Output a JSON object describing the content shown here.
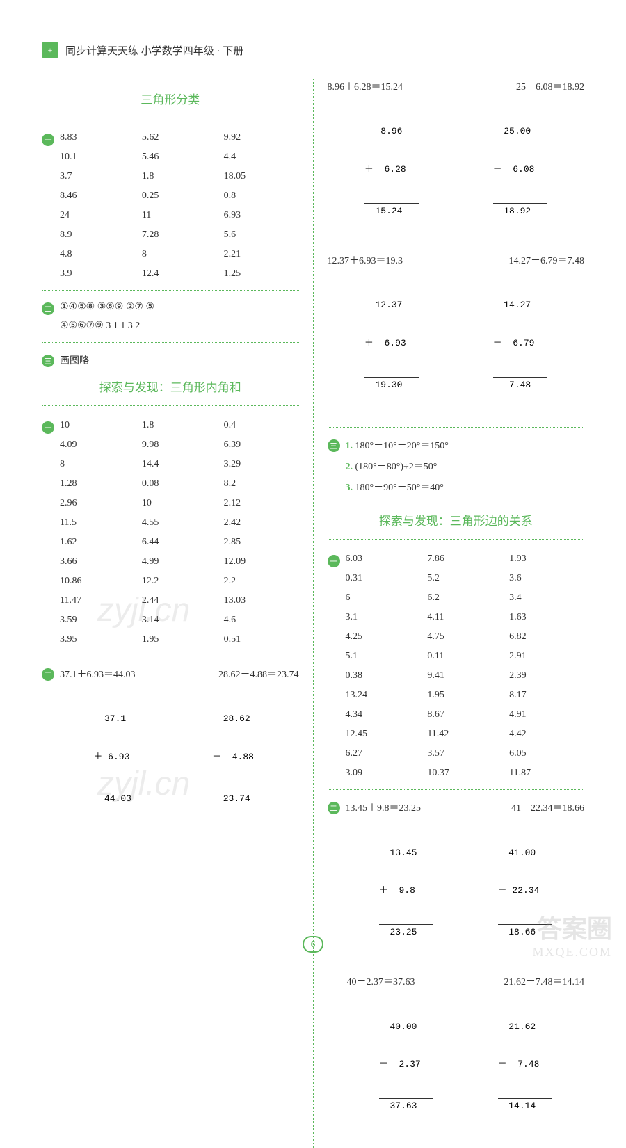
{
  "header": {
    "icon": "+",
    "title": "同步计算天天练  小学数学四年级 · 下册"
  },
  "leftColumn": {
    "section1": {
      "title": "三角形分类",
      "grid1": [
        "8.83",
        "5.62",
        "9.92",
        "10.1",
        "5.46",
        "4.4",
        "3.7",
        "1.8",
        "18.05",
        "8.46",
        "0.25",
        "0.8",
        "24",
        "11",
        "6.93",
        "8.9",
        "7.28",
        "5.6",
        "4.8",
        "8",
        "2.21",
        "3.9",
        "12.4",
        "1.25"
      ],
      "circled": {
        "row1": "①④⑤⑧    ③⑥⑨    ②⑦    ⑤",
        "row2": "④⑤⑥⑦⑨    3  1  1  3  2"
      },
      "drawNote": "画图略"
    },
    "section2": {
      "title": "探索与发现：三角形内角和",
      "grid": [
        "10",
        "1.8",
        "0.4",
        "4.09",
        "9.98",
        "6.39",
        "8",
        "14.4",
        "3.29",
        "1.28",
        "0.08",
        "8.2",
        "2.96",
        "10",
        "2.12",
        "11.5",
        "4.55",
        "2.42",
        "1.62",
        "6.44",
        "2.85",
        "3.66",
        "4.99",
        "12.09",
        "10.86",
        "12.2",
        "2.2",
        "11.47",
        "2.44",
        "13.03",
        "3.59",
        "3.14",
        "4.6",
        "3.95",
        "1.95",
        "0.51"
      ],
      "eq1": {
        "left": "37.1＋6.93＝44.03",
        "right": "28.62－4.88＝23.74"
      },
      "calc1a": {
        "l1": "  37.1 ",
        "l2": "＋ 6.93",
        "l3": "  44.03"
      },
      "calc1b": {
        "l1": "  28.62",
        "l2": "－  4.88",
        "l3": "  23.74"
      }
    }
  },
  "rightColumn": {
    "topEqs": {
      "eq1": {
        "left": "8.96＋6.28＝15.24",
        "right": "25－6.08＝18.92"
      },
      "calc1a": {
        "l1": "   8.96",
        "l2": "＋  6.28",
        "l3": "  15.24"
      },
      "calc1b": {
        "l1": "  25.00",
        "l2": "－  6.08",
        "l3": "  18.92"
      },
      "eq2": {
        "left": "12.37＋6.93＝19.3",
        "right": "14.27－6.79＝7.48"
      },
      "calc2a": {
        "l1": "  12.37",
        "l2": "＋  6.93",
        "l3": "  19.30"
      },
      "calc2b": {
        "l1": "  14.27",
        "l2": "－  6.79",
        "l3": "   7.48"
      }
    },
    "angleItems": {
      "i1": "180°－10°－20°＝150°",
      "i2": "(180°－80°)÷2＝50°",
      "i3": "180°－90°－50°＝40°"
    },
    "section3": {
      "title": "探索与发现：三角形边的关系",
      "grid": [
        "6.03",
        "7.86",
        "1.93",
        "0.31",
        "5.2",
        "3.6",
        "6",
        "6.2",
        "3.4",
        "3.1",
        "4.11",
        "1.63",
        "4.25",
        "4.75",
        "6.82",
        "5.1",
        "0.11",
        "2.91",
        "0.38",
        "9.41",
        "2.39",
        "13.24",
        "1.95",
        "8.17",
        "4.34",
        "8.67",
        "4.91",
        "12.45",
        "11.42",
        "4.42",
        "6.27",
        "3.57",
        "6.05",
        "3.09",
        "10.37",
        "11.87"
      ],
      "eq1": {
        "left": "13.45＋9.8＝23.25",
        "right": "41－22.34＝18.66"
      },
      "calc1a": {
        "l1": "  13.45",
        "l2": "＋  9.8 ",
        "l3": "  23.25"
      },
      "calc1b": {
        "l1": "  41.00",
        "l2": "－ 22.34",
        "l3": "  18.66"
      },
      "eq2": {
        "left": "40－2.37＝37.63",
        "right": "21.62－7.48＝14.14"
      },
      "calc2a": {
        "l1": "  40.00",
        "l2": "－  2.37",
        "l3": "  37.63"
      },
      "calc2b": {
        "l1": "  21.62",
        "l2": "－  7.48",
        "l3": "  14.14"
      }
    }
  },
  "pageNum": "6",
  "watermark": "zyjl.cn",
  "brand": {
    "cn": "答案圈",
    "en": "MXQE.COM"
  }
}
